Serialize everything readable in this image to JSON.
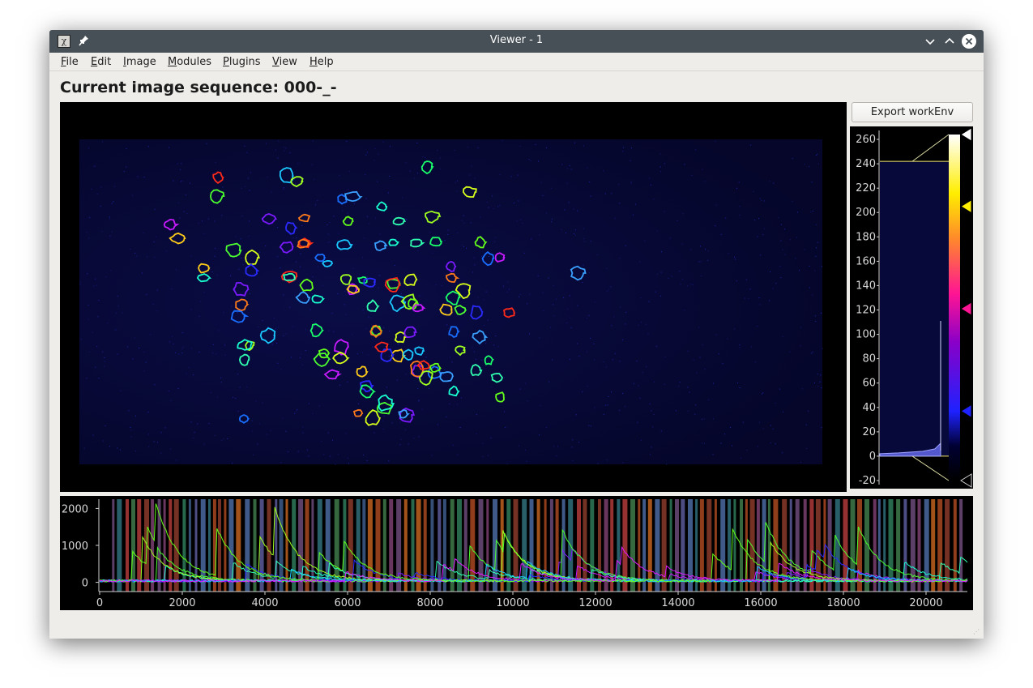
{
  "window": {
    "title": "Viewer - 1"
  },
  "titlebar_icons": [
    "app-icon",
    "pin-icon",
    "minimize-icon",
    "maximize-icon",
    "close-icon"
  ],
  "menu": [
    "File",
    "Edit",
    "Image",
    "Modules",
    "Plugins",
    "View",
    "Help"
  ],
  "sequence_title": "Current image sequence: 000-_-",
  "export_button": "Export workEnv",
  "histogram": {
    "axis_labels": [
      "260",
      "240",
      "220",
      "200",
      "180",
      "160",
      "140",
      "120",
      "100",
      "80",
      "60",
      "40",
      "20",
      "0",
      "-20"
    ],
    "level_min": 0,
    "level_max": 242,
    "gradient_handles": [
      {
        "value": 264,
        "color": "#ffffff"
      },
      {
        "value": 205,
        "color": "#ffee00"
      },
      {
        "value": 121,
        "color": "#ff1493"
      },
      {
        "value": 37,
        "color": "#1e22ff"
      },
      {
        "value": -20,
        "color": "#000000"
      }
    ]
  },
  "trace_plot": {
    "y_ticks": [
      "2000",
      "1000",
      "0"
    ],
    "x_ticks": [
      "0",
      "2000",
      "4000",
      "6000",
      "8000",
      "10000",
      "12000",
      "14000",
      "16000",
      "18000",
      "20000"
    ],
    "x_range": [
      0,
      21000
    ],
    "y_range": [
      -250,
      2250
    ]
  }
}
